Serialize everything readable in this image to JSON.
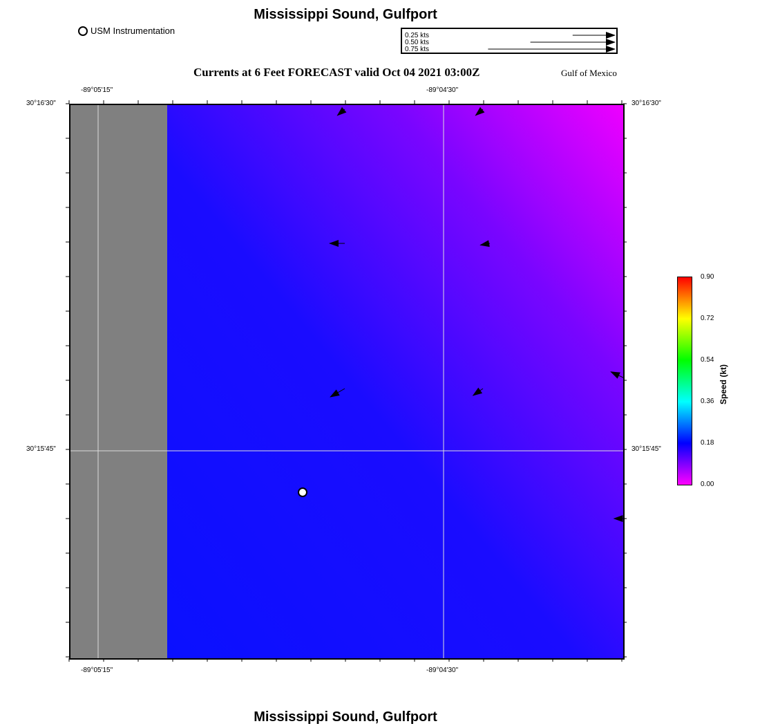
{
  "header": {
    "title": "Mississippi Sound, Gulfport",
    "subtitle": "Currents at 6 Feet FORECAST valid Oct 04 2021 03:00Z",
    "region": "Gulf of Mexico",
    "legend_marker": "USM Instrumentation"
  },
  "footer": {
    "title": "Mississippi Sound, Gulfport"
  },
  "speed_scale": {
    "labels": [
      "0.25 kts",
      "0.50 kts",
      "0.75 kts"
    ],
    "values": [
      0.25,
      0.5,
      0.75
    ]
  },
  "axes": {
    "lon_labels": [
      "-89°05'15\"",
      "-89°04'30\""
    ],
    "lat_labels": [
      "30°16'30\"",
      "30°15'45\""
    ]
  },
  "colorbar": {
    "label": "Speed (kt)",
    "ticks": [
      "0.90",
      "0.72",
      "0.54",
      "0.36",
      "0.18",
      "0.00"
    ],
    "range": [
      0.0,
      0.9
    ]
  },
  "colors": {
    "land": "#808080",
    "water_low": "#0a10ff",
    "water_high": "#ee00ff"
  },
  "currents": [
    {
      "name": "vector-1",
      "speed": 0.06,
      "dir": 220
    },
    {
      "name": "vector-2",
      "speed": 0.06,
      "dir": 220
    },
    {
      "name": "vector-3",
      "speed": 0.1,
      "dir": 180
    },
    {
      "name": "vector-4",
      "speed": 0.06,
      "dir": 190
    },
    {
      "name": "vector-5",
      "speed": 0.11,
      "dir": 210
    },
    {
      "name": "vector-6",
      "speed": 0.08,
      "dir": 215
    },
    {
      "name": "vector-7",
      "speed": 0.1,
      "dir": 155
    },
    {
      "name": "vector-8",
      "speed": 0.07,
      "dir": 180
    }
  ]
}
